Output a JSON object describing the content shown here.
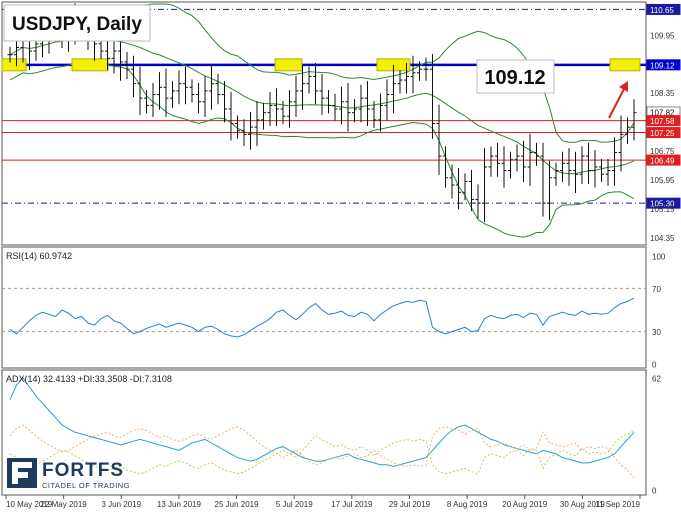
{
  "chart_data": [
    {
      "type": "ohlc",
      "title": "USDJPY, Daily",
      "ylim": [
        104.2,
        110.8
      ],
      "price_ticks": [
        "110.65",
        "109.95",
        "109.12",
        "108.35",
        "107.82",
        "107.58",
        "107.25",
        "106.75",
        "106.49",
        "105.95",
        "105.30",
        "105.15",
        "104.35"
      ],
      "x_tick_labels": [
        "10 May 2019",
        "22 May 2019",
        "3 Jun 2019",
        "13 Jun 2019",
        "25 Jun 2019",
        "5 Jul 2019",
        "17 Jul 2019",
        "29 Jul 2019",
        "8 Aug 2019",
        "20 Aug 2019",
        "30 Aug 2019",
        "11 Sep 2019"
      ],
      "horizontal_levels": [
        {
          "value": 110.65,
          "style": "dash-dot",
          "color": "#1a1aa0"
        },
        {
          "value": 109.12,
          "style": "solid-thick",
          "color": "#0000cc"
        },
        {
          "value": 107.58,
          "style": "solid",
          "color": "#e02020"
        },
        {
          "value": 107.25,
          "style": "solid",
          "color": "#e02020"
        },
        {
          "value": 106.49,
          "style": "solid",
          "color": "#e02020"
        },
        {
          "value": 105.3,
          "style": "dash-dot",
          "color": "#1a1aa0"
        }
      ],
      "highlight_labels": [
        "107.82",
        "107.58",
        "107.25",
        "106.49"
      ],
      "target_label": "109.12",
      "close": [
        109.4,
        109.6,
        109.8,
        109.5,
        109.7,
        109.9,
        110.0,
        110.1,
        109.9,
        110.2,
        110.3,
        110.1,
        109.9,
        109.7,
        109.5,
        109.3,
        109.5,
        109.2,
        109.0,
        108.6,
        108.2,
        108.0,
        108.3,
        108.5,
        108.2,
        108.4,
        108.6,
        108.5,
        108.3,
        108.1,
        108.4,
        108.6,
        108.3,
        107.9,
        107.5,
        107.3,
        107.2,
        107.4,
        107.6,
        107.8,
        108.0,
        107.9,
        107.7,
        108.1,
        108.4,
        108.6,
        108.8,
        108.4,
        108.2,
        108.0,
        107.9,
        108.1,
        107.8,
        107.9,
        108.2,
        107.9,
        107.6,
        108.0,
        108.3,
        108.6,
        108.7,
        108.8,
        108.9,
        109.0,
        109.0,
        107.5,
        106.6,
        106.0,
        105.8,
        105.6,
        105.9,
        105.4,
        105.3,
        106.3,
        106.6,
        106.4,
        106.2,
        106.5,
        106.6,
        106.3,
        106.7,
        106.6,
        105.3,
        106.0,
        106.2,
        106.4,
        106.2,
        106.1,
        106.6,
        106.2,
        106.3,
        106.1,
        106.2,
        106.7,
        107.2,
        107.4,
        107.8
      ],
      "series": [
        {
          "name": "Bollinger Bands",
          "color": "#2a8a2a"
        }
      ]
    },
    {
      "type": "line",
      "title": "RSI(14) 60.9742",
      "ylim": [
        0,
        100
      ],
      "y_ticks": [
        "100",
        "70",
        "30",
        "0"
      ],
      "levels": [
        70,
        30
      ],
      "series": [
        {
          "name": "RSI(14)",
          "color": "#2a7fd4",
          "values": [
            32,
            28,
            34,
            40,
            45,
            48,
            46,
            44,
            50,
            47,
            42,
            44,
            38,
            36,
            42,
            45,
            40,
            38,
            33,
            28,
            30,
            33,
            35,
            37,
            34,
            36,
            38,
            36,
            34,
            30,
            34,
            35,
            32,
            28,
            26,
            25,
            27,
            31,
            35,
            38,
            42,
            48,
            50,
            45,
            41,
            46,
            52,
            56,
            50,
            46,
            47,
            49,
            45,
            44,
            48,
            46,
            40,
            46,
            50,
            54,
            56,
            58,
            57,
            59,
            58,
            34,
            30,
            28,
            30,
            32,
            34,
            30,
            31,
            42,
            45,
            43,
            42,
            45,
            46,
            43,
            47,
            46,
            36,
            44,
            46,
            48,
            46,
            45,
            49,
            46,
            47,
            46,
            47,
            52,
            56,
            58,
            61
          ]
        }
      ]
    },
    {
      "type": "line",
      "title": "ADX(14) 32.4133 +DI:33.3508 -DI:7.3108",
      "ylim": [
        0,
        62
      ],
      "y_ticks": [
        "62",
        "0"
      ],
      "series": [
        {
          "name": "ADX(14)",
          "color": "#2aa0c8",
          "values": [
            50,
            58,
            62,
            57,
            52,
            48,
            44,
            40,
            36,
            34,
            32,
            31,
            30,
            29,
            28,
            27,
            26,
            25,
            26,
            27,
            28,
            27,
            26,
            25,
            24,
            23,
            22,
            24,
            26,
            27,
            28,
            26,
            24,
            22,
            20,
            18,
            17,
            16,
            17,
            19,
            21,
            23,
            24,
            22,
            20,
            18,
            17,
            16,
            16,
            17,
            18,
            19,
            20,
            18,
            17,
            16,
            15,
            14,
            14,
            13,
            14,
            15,
            16,
            17,
            18,
            22,
            26,
            30,
            33,
            35,
            36,
            34,
            32,
            30,
            28,
            27,
            25,
            24,
            23,
            22,
            21,
            20,
            22,
            21,
            20,
            18,
            17,
            16,
            15,
            15,
            16,
            17,
            18,
            20,
            24,
            28,
            32
          ]
        },
        {
          "name": "+DI",
          "color": "#c8c850",
          "values": [
            20,
            18,
            16,
            15,
            14,
            16,
            18,
            20,
            22,
            21,
            19,
            17,
            15,
            13,
            12,
            11,
            12,
            13,
            11,
            10,
            9,
            10,
            12,
            14,
            13,
            15,
            16,
            15,
            13,
            12,
            14,
            15,
            13,
            11,
            10,
            9,
            10,
            12,
            14,
            16,
            18,
            20,
            22,
            20,
            18,
            22,
            26,
            30,
            28,
            26,
            24,
            25,
            23,
            22,
            24,
            22,
            19,
            22,
            24,
            26,
            27,
            28,
            27,
            28,
            27,
            14,
            10,
            9,
            10,
            11,
            12,
            10,
            9,
            18,
            20,
            19,
            18,
            21,
            22,
            19,
            23,
            22,
            12,
            18,
            20,
            22,
            20,
            19,
            23,
            20,
            21,
            20,
            21,
            26,
            29,
            31,
            33
          ]
        },
        {
          "name": "-DI",
          "color": "#f0b070",
          "values": [
            30,
            34,
            36,
            33,
            30,
            27,
            25,
            23,
            21,
            22,
            24,
            26,
            28,
            30,
            31,
            32,
            30,
            29,
            31,
            33,
            34,
            33,
            31,
            29,
            30,
            28,
            27,
            28,
            30,
            31,
            29,
            28,
            30,
            32,
            34,
            35,
            33,
            30,
            27,
            24,
            22,
            20,
            18,
            20,
            22,
            19,
            16,
            14,
            15,
            17,
            18,
            17,
            19,
            20,
            18,
            19,
            22,
            19,
            17,
            15,
            14,
            13,
            14,
            13,
            14,
            30,
            34,
            35,
            34,
            33,
            31,
            33,
            34,
            26,
            24,
            25,
            26,
            24,
            23,
            25,
            22,
            23,
            32,
            26,
            25,
            24,
            25,
            26,
            22,
            24,
            23,
            24,
            23,
            18,
            14,
            11,
            7
          ]
        }
      ]
    }
  ],
  "brand": {
    "name": "FORTFS",
    "tagline": "CITADEL OF TRADING"
  }
}
